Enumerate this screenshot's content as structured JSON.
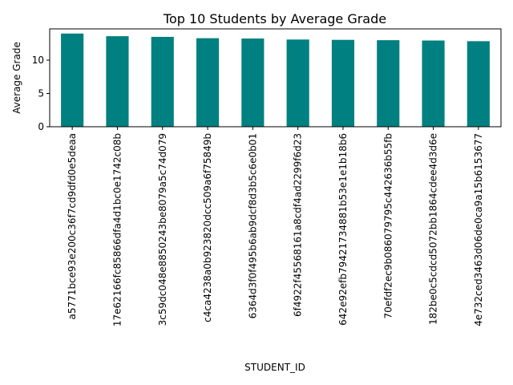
{
  "chart_data": {
    "type": "bar",
    "title": "Top 10 Students by Average Grade",
    "xlabel": "STUDENT_ID",
    "ylabel": "Average Grade",
    "categories": [
      "a5771bce93e200c36f7cd9dfd0e5deaa",
      "17e62166fc85866dfa4d1bc0e1742c08b",
      "3c59dc048e8850243be8079a5c74d079",
      "c4ca4238a0b923820dcc509a6f75849b",
      "6364d3f0f495b6ab9dcf8d3b5c6e0b01",
      "6f4922f45568161a8cdf4ad2299f6d23",
      "642e92efb79421734881b53e1e1b18b6",
      "70efdf2ec9b086079795c442636b55fb",
      "182be0c5cdcd5072bb1864cdee4d3d6e",
      "4e732ced3463d06de0ca9a15b6153677"
    ],
    "values": [
      14.0,
      13.6,
      13.5,
      13.3,
      13.25,
      13.1,
      13.05,
      13.0,
      12.95,
      12.85
    ],
    "ylim": [
      0,
      14.7
    ],
    "yticks": [
      0,
      5,
      10
    ],
    "grid": false,
    "bar_color": "#008080"
  }
}
